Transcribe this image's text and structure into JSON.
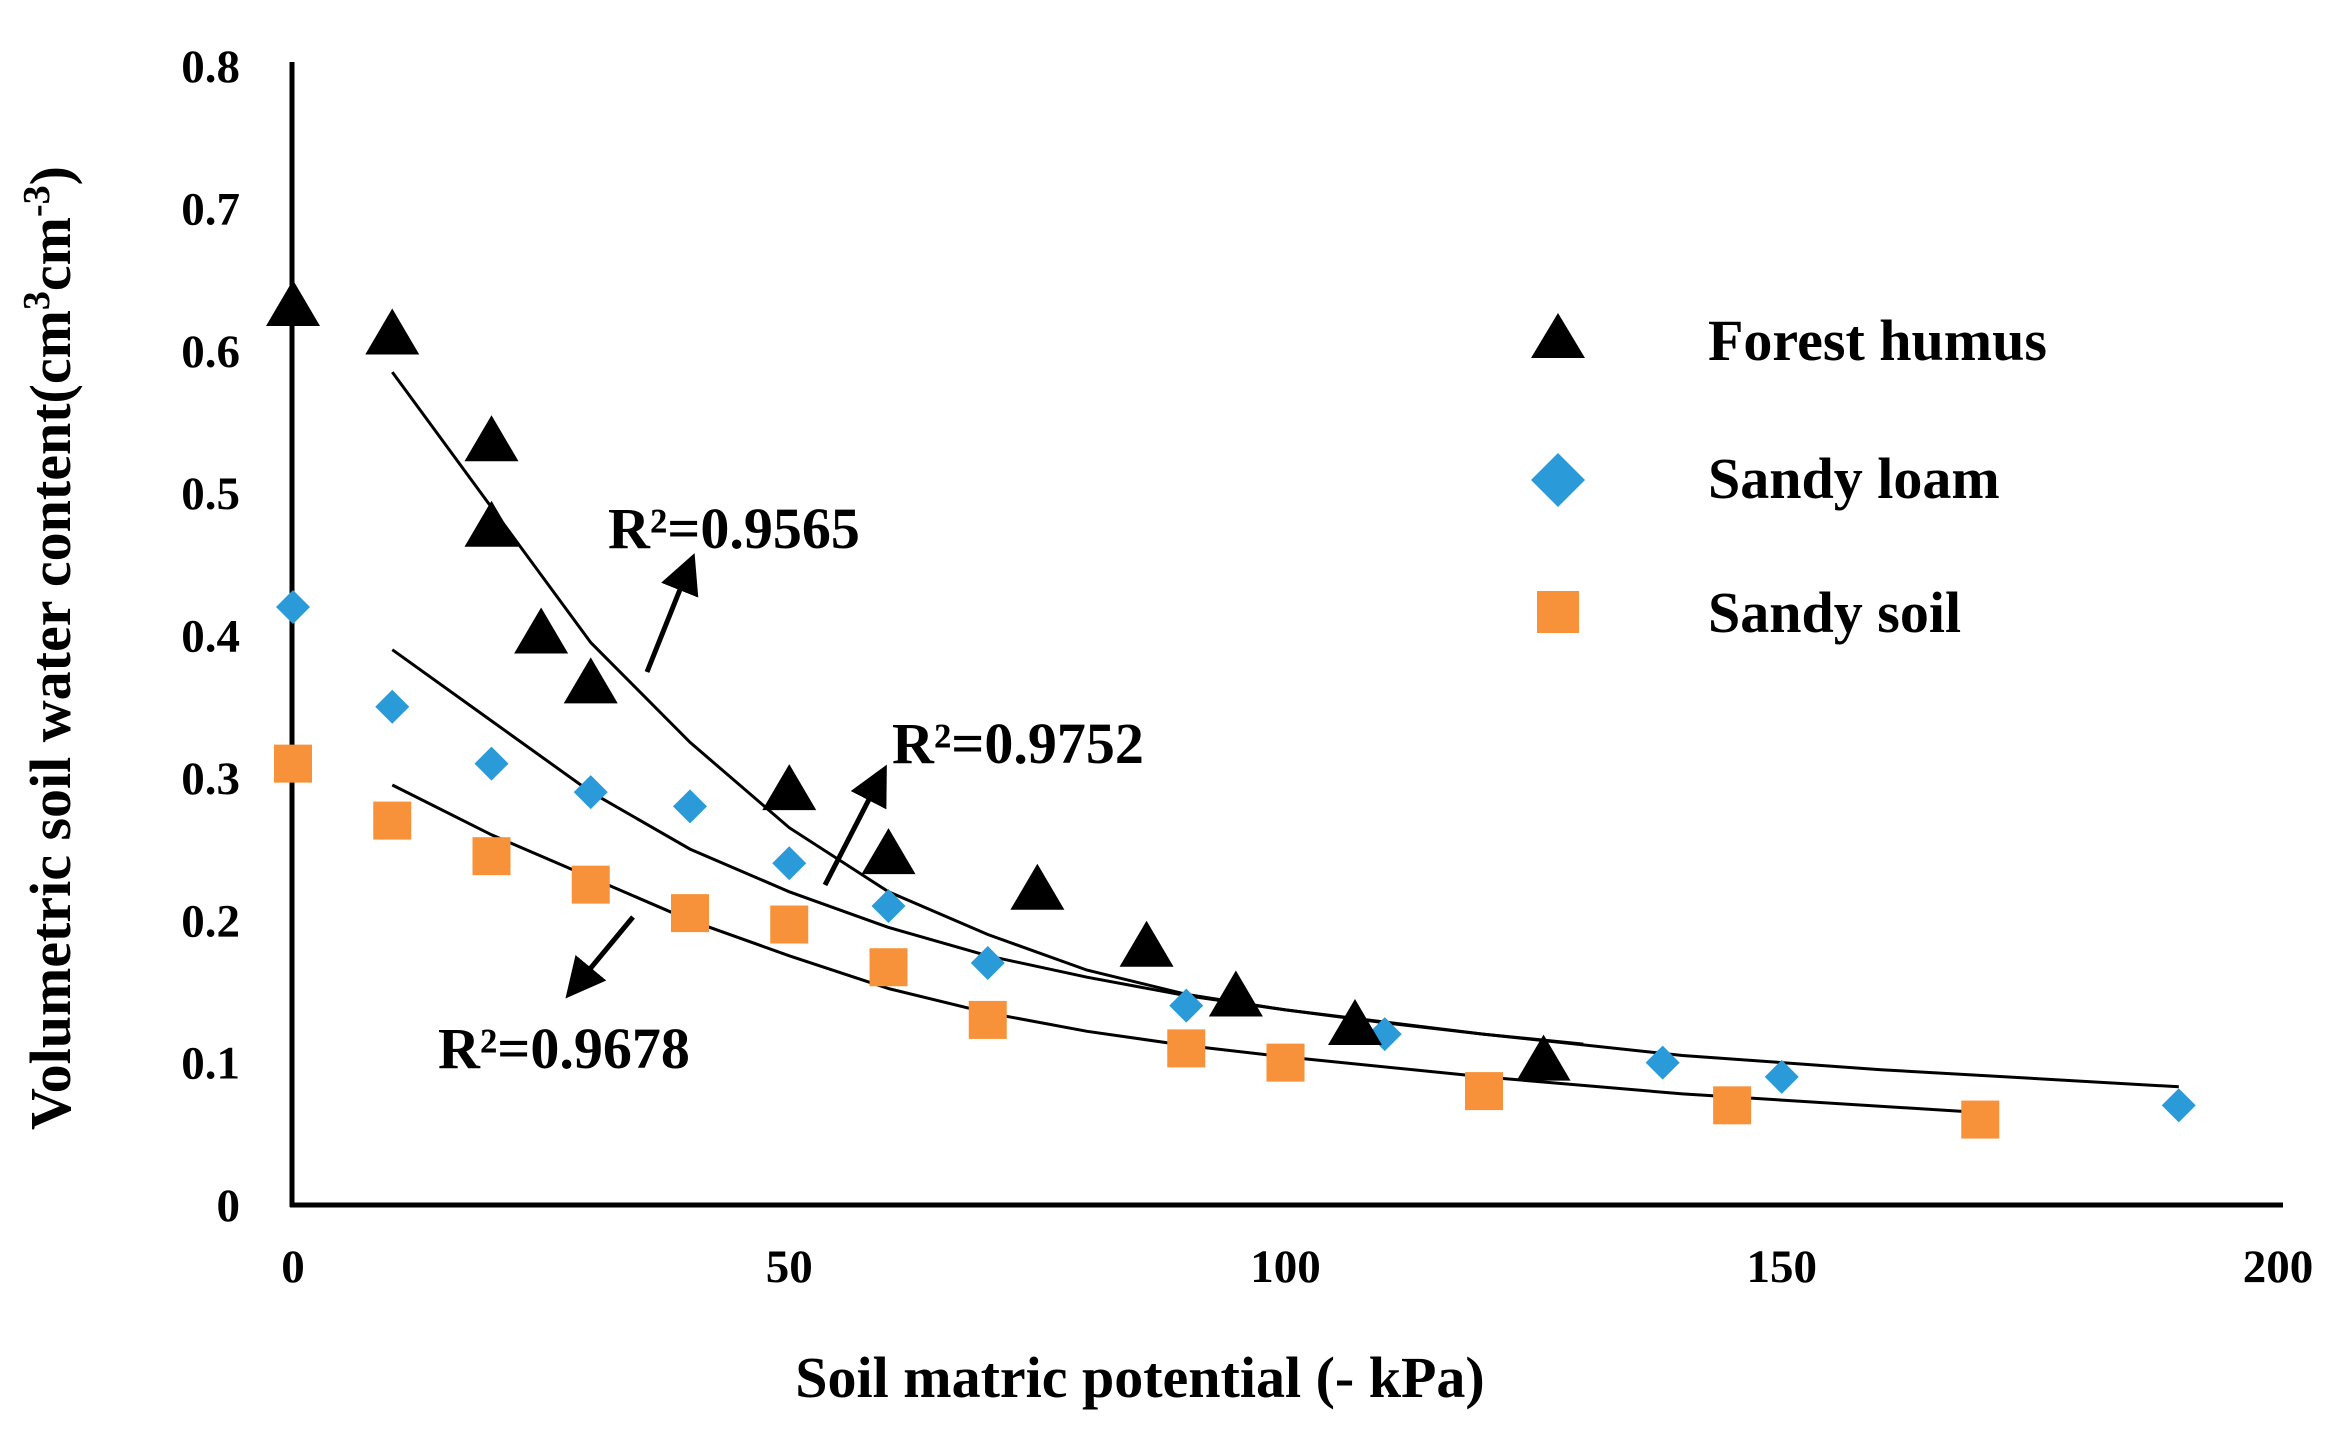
{
  "chart_data": {
    "type": "scatter",
    "title": "",
    "xlabel": "Soil matric potential (- kPa)",
    "ylabel_parts": {
      "prefix": "Volumetric soil water content(cm",
      "sup1": "3",
      "mid": "cm",
      "sup2": "-3",
      "suffix": ")"
    },
    "xlim": [
      0,
      200
    ],
    "ylim": [
      0,
      0.8
    ],
    "x_ticks": [
      0,
      50,
      100,
      150,
      200
    ],
    "x_tick_labels": [
      "0",
      "50",
      "100",
      "150",
      "200"
    ],
    "y_ticks": [
      0,
      0.1,
      0.2,
      0.3,
      0.4,
      0.5,
      0.6,
      0.7,
      0.8
    ],
    "y_tick_labels": [
      "0",
      "0.1",
      "0.2",
      "0.3",
      "0.4",
      "0.5",
      "0.6",
      "0.7",
      "0.8"
    ],
    "grid": false,
    "legend_position": "top-right",
    "series": [
      {
        "name": "Forest humus",
        "marker": "triangle",
        "color": "#000000",
        "x": [
          0,
          10,
          20,
          20,
          25,
          30,
          50,
          60,
          75,
          86,
          95,
          107,
          126
        ],
        "y": [
          0.63,
          0.61,
          0.535,
          0.475,
          0.4,
          0.365,
          0.29,
          0.245,
          0.22,
          0.18,
          0.145,
          0.125,
          0.1
        ],
        "fit": {
          "r2_text": "R²=0.9565",
          "x": [
            10,
            20,
            30,
            40,
            50,
            60,
            70,
            80,
            90,
            100,
            110,
            120,
            130
          ],
          "y": [
            0.585,
            0.49,
            0.395,
            0.325,
            0.265,
            0.22,
            0.19,
            0.165,
            0.148,
            0.137,
            0.128,
            0.12,
            0.113
          ]
        }
      },
      {
        "name": "Sandy loam",
        "marker": "diamond",
        "color": "#2a9bd8",
        "x": [
          0,
          10,
          20,
          30,
          40,
          50,
          60,
          70,
          90,
          110,
          138,
          150,
          190
        ],
        "y": [
          0.42,
          0.35,
          0.31,
          0.29,
          0.28,
          0.24,
          0.21,
          0.17,
          0.14,
          0.12,
          0.1,
          0.09,
          0.07
        ],
        "fit": {
          "r2_text": "R²=0.9752",
          "x": [
            10,
            20,
            30,
            40,
            50,
            60,
            70,
            80,
            90,
            100,
            120,
            140,
            160,
            190
          ],
          "y": [
            0.39,
            0.34,
            0.29,
            0.25,
            0.22,
            0.195,
            0.175,
            0.16,
            0.147,
            0.137,
            0.12,
            0.105,
            0.095,
            0.083
          ]
        }
      },
      {
        "name": "Sandy soil",
        "marker": "square",
        "color": "#f7923a",
        "x": [
          0,
          10,
          20,
          30,
          40,
          50,
          60,
          70,
          90,
          100,
          120,
          145,
          170
        ],
        "y": [
          0.31,
          0.27,
          0.245,
          0.225,
          0.205,
          0.197,
          0.167,
          0.13,
          0.11,
          0.1,
          0.08,
          0.07,
          0.06
        ],
        "fit": {
          "r2_text": "R²=0.9678",
          "x": [
            10,
            20,
            30,
            40,
            50,
            60,
            70,
            80,
            90,
            100,
            120,
            140,
            170
          ],
          "y": [
            0.295,
            0.26,
            0.23,
            0.2,
            0.175,
            0.152,
            0.135,
            0.122,
            0.112,
            0.104,
            0.09,
            0.078,
            0.065
          ]
        }
      }
    ]
  }
}
